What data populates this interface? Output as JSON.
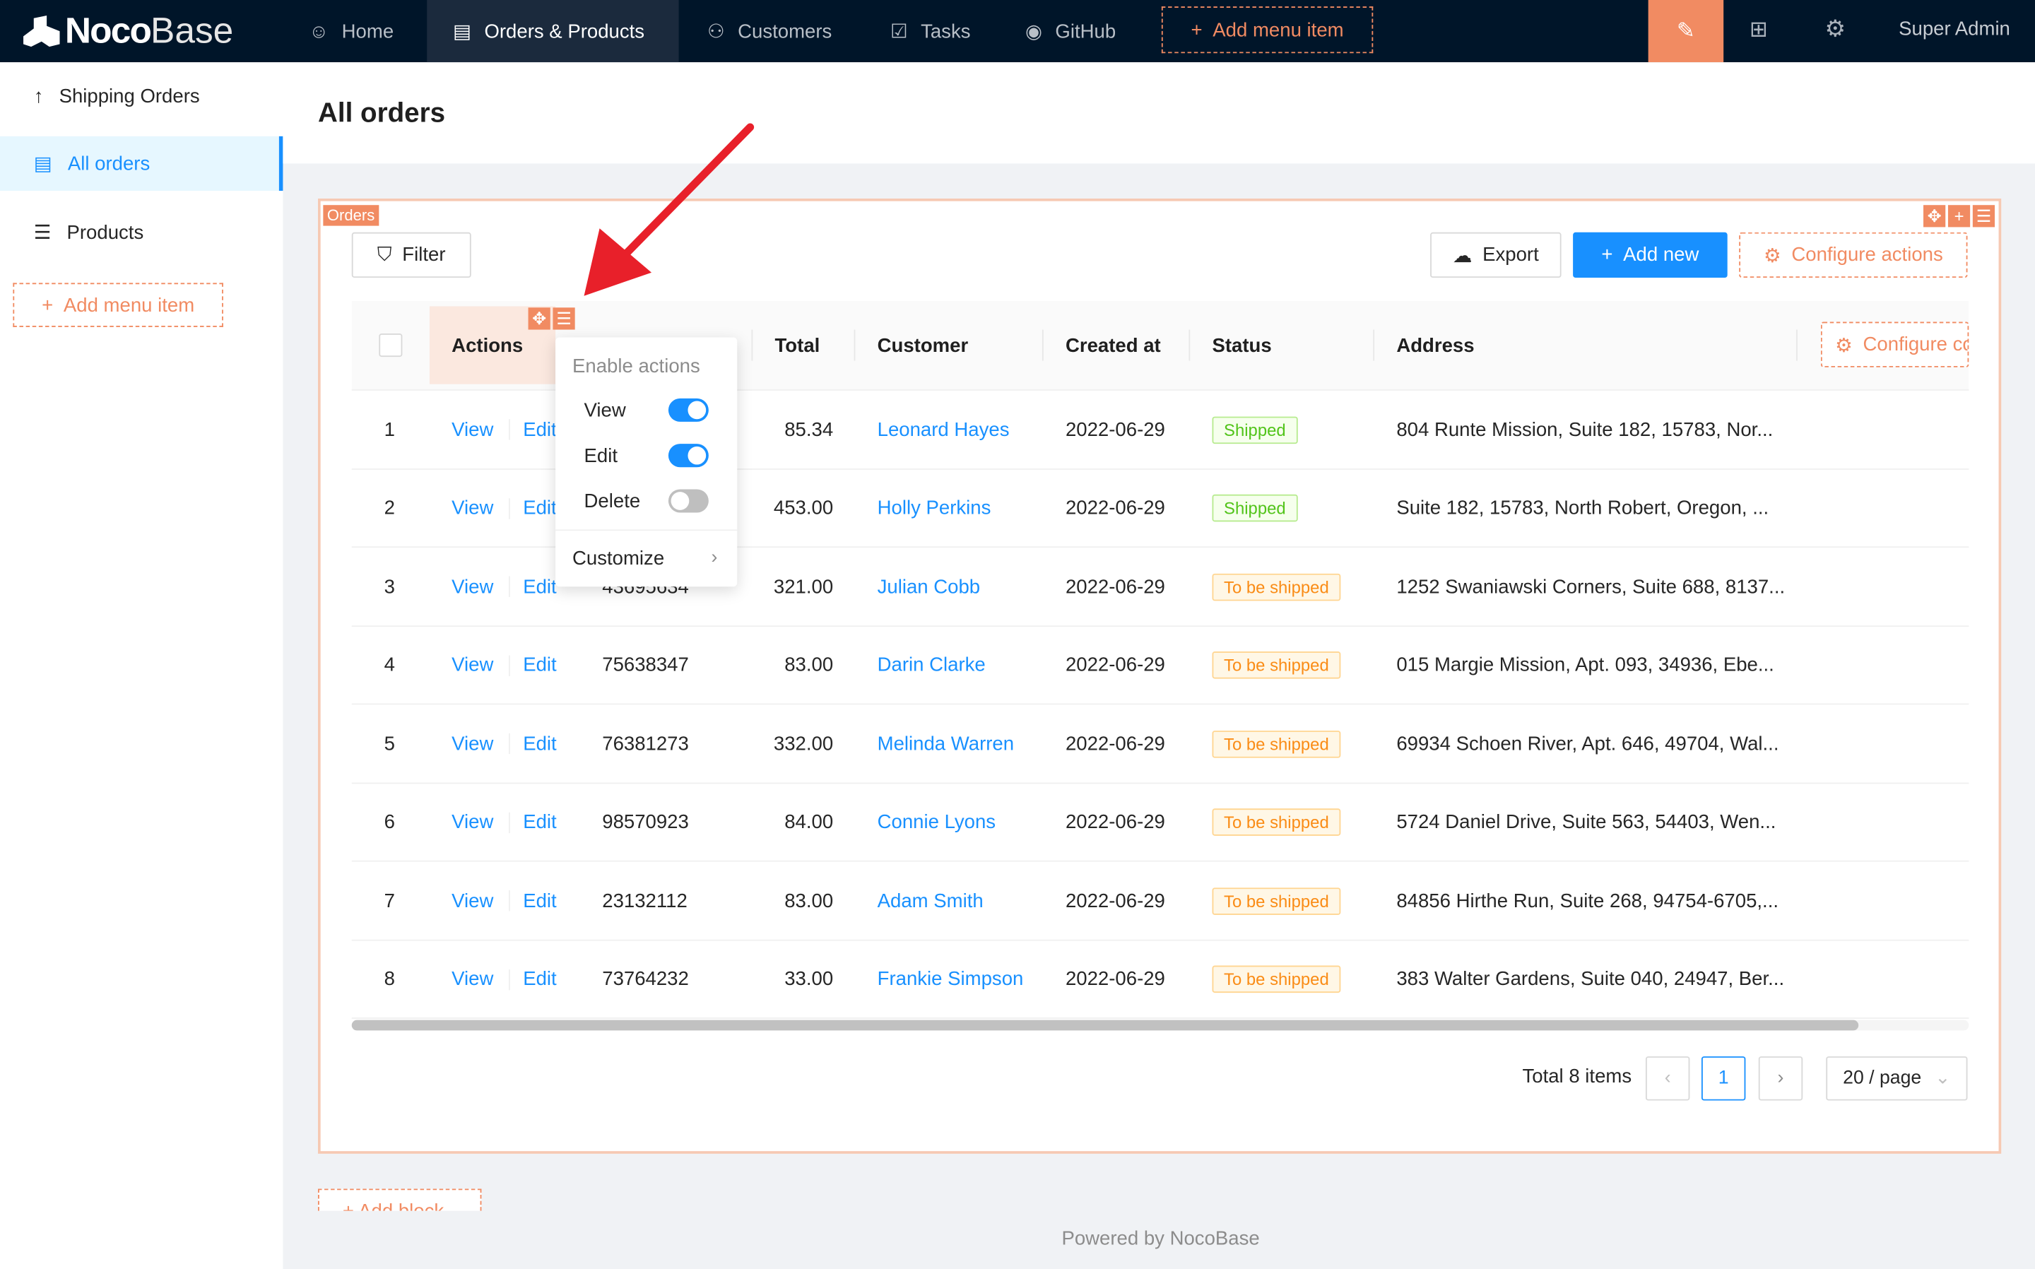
{
  "header": {
    "brand_bold": "Noco",
    "brand_light": "Base",
    "nav": [
      {
        "label": "Home",
        "icon": "smile-icon"
      },
      {
        "label": "Orders & Products",
        "icon": "file-icon",
        "active": true
      },
      {
        "label": "Customers",
        "icon": "user-icon"
      },
      {
        "label": "Tasks",
        "icon": "check-square-icon"
      },
      {
        "label": "GitHub",
        "icon": "github-icon"
      }
    ],
    "add_menu_item": "Add menu item",
    "user": "Super Admin",
    "accent": "#f18b62",
    "bg": "#001529"
  },
  "sidebar": {
    "items": [
      {
        "label": "Shipping Orders",
        "icon": "arrow-up-icon"
      },
      {
        "label": "All orders",
        "icon": "file-icon",
        "selected": true
      },
      {
        "label": "Products",
        "icon": "list-icon"
      }
    ],
    "add_menu_item": "Add menu item"
  },
  "page": {
    "title": "All orders"
  },
  "block": {
    "tag": "Orders",
    "filter": "Filter",
    "export": "Export",
    "add_new": "Add new",
    "configure_actions": "Configure actions",
    "configure_columns": "Configure columns"
  },
  "table": {
    "columns": {
      "actions": "Actions",
      "order_no": "",
      "total": "Total",
      "customer": "Customer",
      "created_at": "Created at",
      "status": "Status",
      "address": "Address"
    },
    "rows": [
      {
        "n": "1",
        "view": "View",
        "edit": "Edit",
        "order_no": "",
        "total": "85.34",
        "customer": "Leonard Hayes",
        "created": "2022-06-29",
        "status": "Shipped",
        "address": "804 Runte Mission, Suite 182, 15783, Nor..."
      },
      {
        "n": "2",
        "view": "View",
        "edit": "Edit",
        "order_no": "",
        "total": "453.00",
        "customer": "Holly Perkins",
        "created": "2022-06-29",
        "status": "Shipped",
        "address": "Suite 182, 15783, North Robert, Oregon, ..."
      },
      {
        "n": "3",
        "view": "View",
        "edit": "Edit",
        "order_no": "43695634",
        "total": "321.00",
        "customer": "Julian Cobb",
        "created": "2022-06-29",
        "status": "To be shipped",
        "address": "1252 Swaniawski Corners, Suite 688, 8137..."
      },
      {
        "n": "4",
        "view": "View",
        "edit": "Edit",
        "order_no": "75638347",
        "total": "83.00",
        "customer": "Darin Clarke",
        "created": "2022-06-29",
        "status": "To be shipped",
        "address": "015 Margie Mission, Apt. 093, 34936, Ebe..."
      },
      {
        "n": "5",
        "view": "View",
        "edit": "Edit",
        "order_no": "76381273",
        "total": "332.00",
        "customer": "Melinda Warren",
        "created": "2022-06-29",
        "status": "To be shipped",
        "address": "69934 Schoen River, Apt. 646, 49704, Wal..."
      },
      {
        "n": "6",
        "view": "View",
        "edit": "Edit",
        "order_no": "98570923",
        "total": "84.00",
        "customer": "Connie Lyons",
        "created": "2022-06-29",
        "status": "To be shipped",
        "address": "5724 Daniel Drive, Suite 563, 54403, Wen..."
      },
      {
        "n": "7",
        "view": "View",
        "edit": "Edit",
        "order_no": "23132112",
        "total": "83.00",
        "customer": "Adam Smith",
        "created": "2022-06-29",
        "status": "To be shipped",
        "address": "84856 Hirthe Run, Suite 268, 94754-6705,..."
      },
      {
        "n": "8",
        "view": "View",
        "edit": "Edit",
        "order_no": "73764232",
        "total": "33.00",
        "customer": "Frankie Simpson",
        "created": "2022-06-29",
        "status": "To be shipped",
        "address": "383 Walter Gardens, Suite 040, 24947, Ber..."
      }
    ]
  },
  "popup": {
    "heading": "Enable actions",
    "items": [
      {
        "label": "View",
        "on": true
      },
      {
        "label": "Edit",
        "on": true
      },
      {
        "label": "Delete",
        "on": false
      }
    ],
    "customize": "Customize"
  },
  "pagination": {
    "total": "Total 8 items",
    "page": "1",
    "page_size": "20 / page"
  },
  "add_block": "Add block",
  "footer": "Powered by NocoBase"
}
